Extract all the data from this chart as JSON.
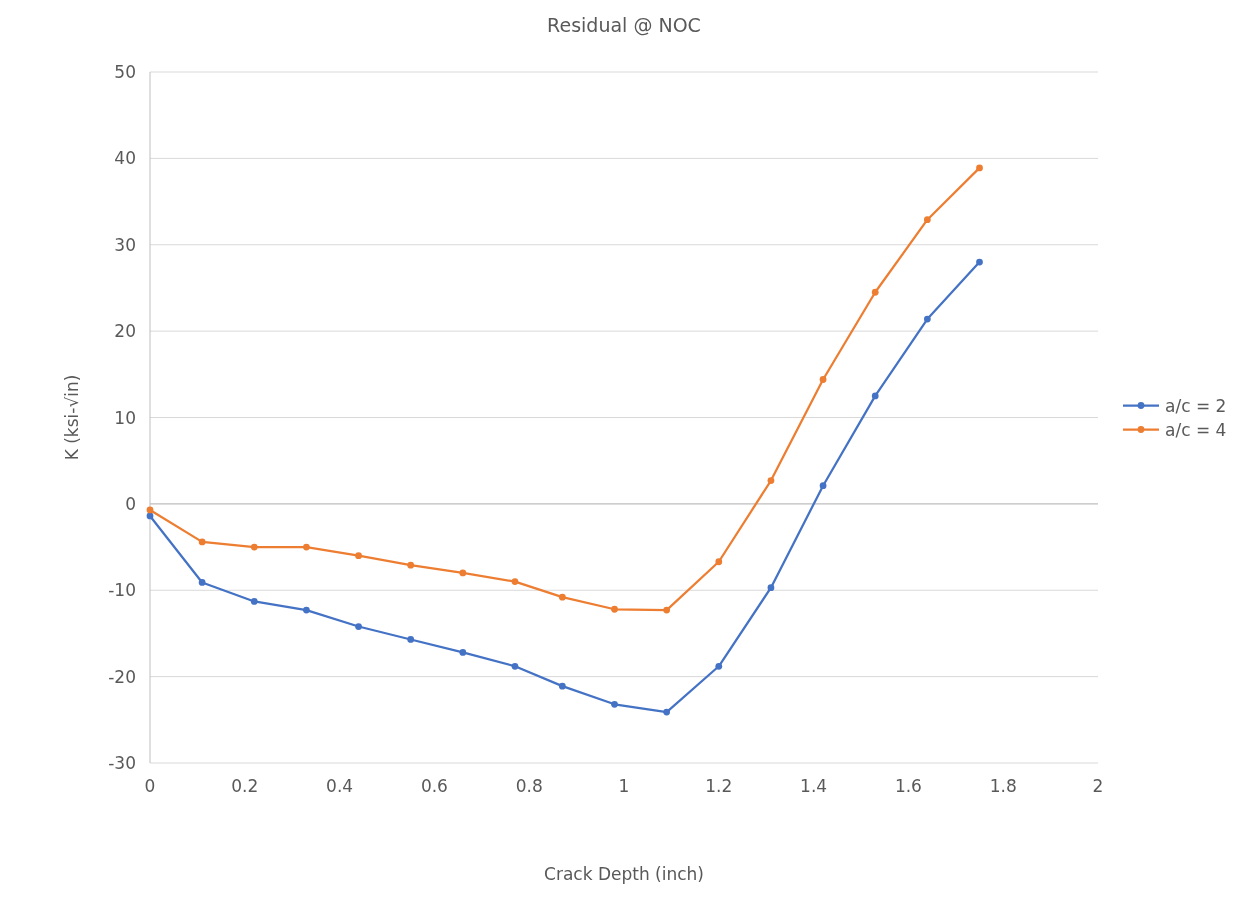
{
  "chart_data": {
    "type": "line",
    "title": "Residual @ NOC",
    "xlabel": "Crack Depth (inch)",
    "ylabel": "K (ksi-√in)",
    "x": [
      0,
      0.11,
      0.22,
      0.33,
      0.44,
      0.55,
      0.66,
      0.77,
      0.87,
      0.98,
      1.09,
      1.2,
      1.31,
      1.42,
      1.53,
      1.64,
      1.75
    ],
    "series": [
      {
        "name": "a/c = 2",
        "color": "#4472c4",
        "values": [
          -1.4,
          -9.1,
          -11.3,
          -12.3,
          -14.2,
          -15.7,
          -17.2,
          -18.8,
          -21.1,
          -23.2,
          -24.1,
          -18.8,
          -9.7,
          2.1,
          12.5,
          21.4,
          28.0
        ]
      },
      {
        "name": "a/c = 4",
        "color": "#ed7d31",
        "values": [
          -0.7,
          -4.4,
          -5.0,
          -5.0,
          -6.0,
          -7.1,
          -8.0,
          -9.0,
          -10.8,
          -12.2,
          -12.3,
          -6.7,
          2.7,
          14.4,
          24.5,
          32.9,
          38.9
        ]
      }
    ],
    "xlim": [
      0,
      2
    ],
    "xticks": [
      0,
      {
        "value": 0.2,
        "label": "0.2"
      },
      {
        "value": 0.4,
        "label": "0.4"
      },
      {
        "value": 0.6,
        "label": "0.6"
      },
      {
        "value": 0.8,
        "label": "0.8"
      },
      1,
      {
        "value": 1.2,
        "label": "1.2"
      },
      {
        "value": 1.4,
        "label": "1.4"
      },
      {
        "value": 1.6,
        "label": "1.6"
      },
      {
        "value": 1.8,
        "label": "1.8"
      },
      2
    ],
    "ylim": [
      -30,
      50
    ],
    "yticks": [
      -30,
      -20,
      -10,
      0,
      10,
      20,
      30,
      40,
      50
    ],
    "grid": "y",
    "legend": "right",
    "marker": "circle",
    "line_style": "solid"
  }
}
